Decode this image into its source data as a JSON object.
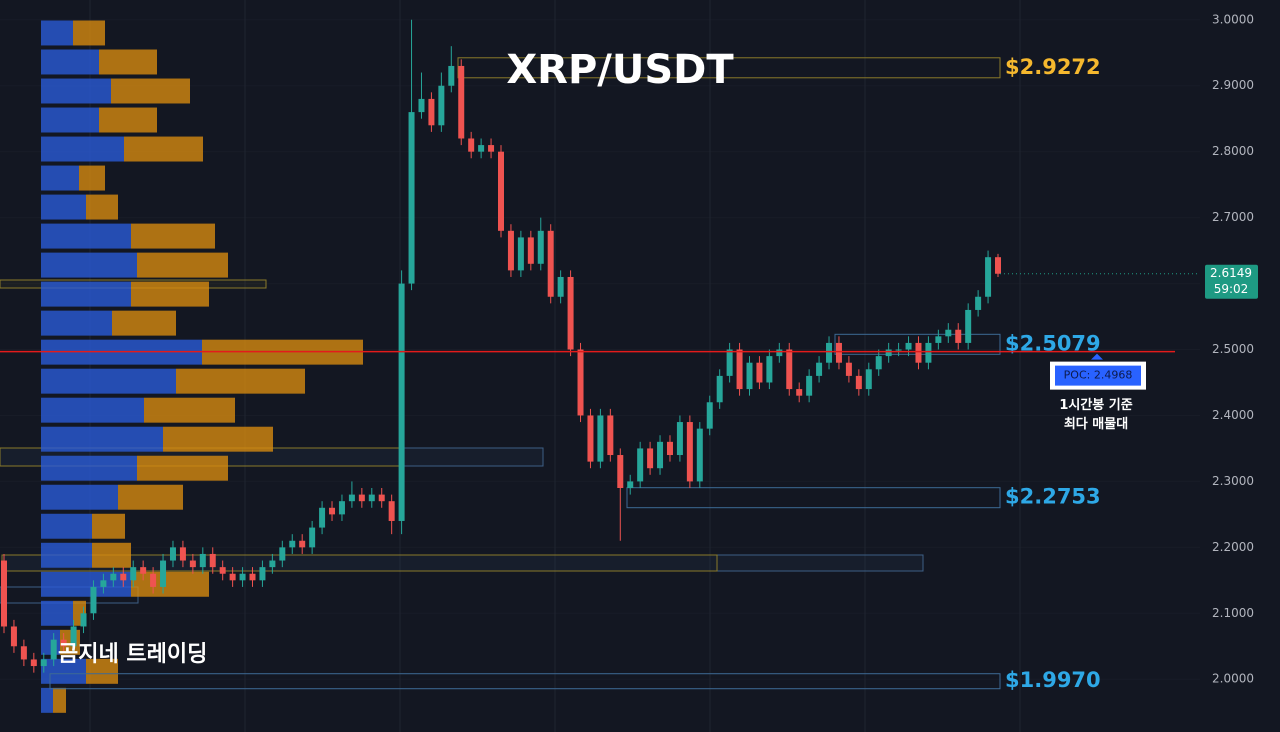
{
  "chart_data": {
    "type": "candlestick",
    "title": "XRP/USDT",
    "watermark": "곰지네 트레이딩",
    "ylim": [
      1.92,
      3.03
    ],
    "yticks": [
      {
        "value": 2.0,
        "label": "2.0000"
      },
      {
        "value": 2.1,
        "label": "2.1000"
      },
      {
        "value": 2.2,
        "label": "2.2000"
      },
      {
        "value": 2.3,
        "label": "2.3000"
      },
      {
        "value": 2.4,
        "label": "2.4000"
      },
      {
        "value": 2.5,
        "label": "2.5000"
      },
      {
        "value": 2.6,
        "label": "2.6000"
      },
      {
        "value": 2.7,
        "label": "2.7000"
      },
      {
        "value": 2.8,
        "label": "2.8000"
      },
      {
        "value": 2.9,
        "label": "2.9000"
      },
      {
        "value": 3.0,
        "label": "3.0000"
      }
    ],
    "grid": true,
    "up_color": "#26a69a",
    "down_color": "#ef5350",
    "open": [
      2.18,
      2.08,
      2.05,
      2.03,
      2.02,
      2.03,
      2.06,
      2.05,
      2.08,
      2.1,
      2.14,
      2.15,
      2.16,
      2.15,
      2.17,
      2.16,
      2.14,
      2.18,
      2.2,
      2.18,
      2.17,
      2.19,
      2.17,
      2.16,
      2.15,
      2.16,
      2.15,
      2.17,
      2.18,
      2.2,
      2.21,
      2.2,
      2.23,
      2.26,
      2.25,
      2.27,
      2.28,
      2.27,
      2.28,
      2.27,
      2.24,
      2.6,
      2.86,
      2.88,
      2.84,
      2.9,
      2.93,
      2.82,
      2.8,
      2.81,
      2.8,
      2.68,
      2.62,
      2.67,
      2.63,
      2.68,
      2.58,
      2.61,
      2.5,
      2.4,
      2.33,
      2.4,
      2.34,
      2.29,
      2.3,
      2.35,
      2.32,
      2.36,
      2.34,
      2.39,
      2.3,
      2.38,
      2.42,
      2.46,
      2.5,
      2.44,
      2.48,
      2.45,
      2.49,
      2.5,
      2.44,
      2.43,
      2.46,
      2.48,
      2.51,
      2.48,
      2.46,
      2.44,
      2.47,
      2.49,
      2.5,
      2.5,
      2.51,
      2.48,
      2.51,
      2.52,
      2.53,
      2.51,
      2.56,
      2.58,
      2.64
    ],
    "high": [
      2.19,
      2.09,
      2.06,
      2.04,
      2.04,
      2.07,
      2.07,
      2.09,
      2.11,
      2.15,
      2.16,
      2.17,
      2.17,
      2.18,
      2.18,
      2.17,
      2.19,
      2.21,
      2.21,
      2.19,
      2.2,
      2.2,
      2.18,
      2.17,
      2.17,
      2.17,
      2.18,
      2.19,
      2.21,
      2.22,
      2.22,
      2.24,
      2.27,
      2.27,
      2.28,
      2.3,
      2.29,
      2.29,
      2.29,
      2.28,
      2.62,
      3.0,
      2.92,
      2.89,
      2.92,
      2.96,
      2.94,
      2.83,
      2.82,
      2.82,
      2.81,
      2.69,
      2.68,
      2.68,
      2.7,
      2.69,
      2.62,
      2.62,
      2.51,
      2.41,
      2.41,
      2.41,
      2.35,
      2.31,
      2.36,
      2.36,
      2.37,
      2.37,
      2.4,
      2.4,
      2.39,
      2.43,
      2.47,
      2.51,
      2.51,
      2.49,
      2.49,
      2.5,
      2.51,
      2.51,
      2.45,
      2.47,
      2.49,
      2.52,
      2.52,
      2.49,
      2.47,
      2.48,
      2.5,
      2.51,
      2.51,
      2.52,
      2.52,
      2.52,
      2.53,
      2.54,
      2.54,
      2.57,
      2.59,
      2.65,
      2.645
    ],
    "low": [
      2.07,
      2.04,
      2.02,
      2.01,
      2.01,
      2.02,
      2.04,
      2.04,
      2.07,
      2.09,
      2.13,
      2.14,
      2.14,
      2.14,
      2.15,
      2.13,
      2.13,
      2.17,
      2.17,
      2.16,
      2.16,
      2.16,
      2.15,
      2.14,
      2.14,
      2.14,
      2.14,
      2.16,
      2.17,
      2.19,
      2.19,
      2.19,
      2.22,
      2.24,
      2.24,
      2.26,
      2.26,
      2.26,
      2.26,
      2.22,
      2.22,
      2.59,
      2.85,
      2.83,
      2.83,
      2.89,
      2.81,
      2.79,
      2.79,
      2.79,
      2.67,
      2.61,
      2.61,
      2.62,
      2.62,
      2.57,
      2.57,
      2.49,
      2.39,
      2.32,
      2.32,
      2.33,
      2.21,
      2.28,
      2.29,
      2.31,
      2.31,
      2.33,
      2.33,
      2.29,
      2.29,
      2.37,
      2.41,
      2.45,
      2.43,
      2.43,
      2.44,
      2.44,
      2.48,
      2.43,
      2.42,
      2.42,
      2.45,
      2.47,
      2.47,
      2.45,
      2.43,
      2.43,
      2.46,
      2.48,
      2.49,
      2.49,
      2.47,
      2.47,
      2.5,
      2.51,
      2.5,
      2.5,
      2.55,
      2.57,
      2.61
    ],
    "close": [
      2.08,
      2.05,
      2.03,
      2.02,
      2.03,
      2.06,
      2.05,
      2.08,
      2.1,
      2.14,
      2.15,
      2.16,
      2.15,
      2.17,
      2.16,
      2.14,
      2.18,
      2.2,
      2.18,
      2.17,
      2.19,
      2.17,
      2.16,
      2.15,
      2.16,
      2.15,
      2.17,
      2.18,
      2.2,
      2.21,
      2.2,
      2.23,
      2.26,
      2.25,
      2.27,
      2.28,
      2.27,
      2.28,
      2.27,
      2.24,
      2.6,
      2.86,
      2.88,
      2.84,
      2.9,
      2.93,
      2.82,
      2.8,
      2.81,
      2.8,
      2.68,
      2.62,
      2.67,
      2.63,
      2.68,
      2.58,
      2.61,
      2.5,
      2.4,
      2.33,
      2.4,
      2.34,
      2.29,
      2.3,
      2.35,
      2.32,
      2.36,
      2.34,
      2.39,
      2.3,
      2.38,
      2.42,
      2.46,
      2.5,
      2.44,
      2.48,
      2.45,
      2.49,
      2.5,
      2.44,
      2.43,
      2.46,
      2.48,
      2.51,
      2.48,
      2.46,
      2.44,
      2.47,
      2.49,
      2.5,
      2.5,
      2.51,
      2.48,
      2.51,
      2.52,
      2.53,
      2.51,
      2.56,
      2.58,
      2.64,
      2.6149
    ],
    "profile": {
      "prices": [
        2.98,
        2.936,
        2.892,
        2.848,
        2.804,
        2.76,
        2.716,
        2.672,
        2.628,
        2.584,
        2.54,
        2.496,
        2.452,
        2.408,
        2.364,
        2.32,
        2.276,
        2.232,
        2.188,
        2.144,
        2.1,
        2.056,
        2.012,
        1.968
      ],
      "series": [
        {
          "color": "#2a5bd7",
          "values": [
            32,
            58,
            70,
            58,
            83,
            38,
            45,
            90,
            96,
            90,
            71,
            161,
            135,
            103,
            122,
            96,
            77,
            51,
            51,
            90,
            32,
            19,
            45,
            12
          ]
        },
        {
          "color": "#d68910",
          "values": [
            32,
            58,
            79,
            58,
            79,
            26,
            32,
            84,
            91,
            78,
            64,
            161,
            129,
            91,
            110,
            91,
            65,
            33,
            39,
            78,
            13,
            20,
            32,
            13
          ]
        }
      ]
    },
    "levels": [
      {
        "value": 2.9272,
        "label": "$2.9272",
        "color": "#f5b82e"
      },
      {
        "value": 2.5079,
        "label": "$2.5079",
        "color": "#2ea8e6"
      },
      {
        "value": 2.2753,
        "label": "$2.2753",
        "color": "#2ea8e6"
      },
      {
        "value": 1.997,
        "label": "$1.9970",
        "color": "#2ea8e6"
      }
    ],
    "poc": {
      "value": 2.4968,
      "label": "POC: 2.4968",
      "note": [
        "1시간봉 기준",
        "최다 매물대"
      ],
      "color": "#e31b1b"
    },
    "price_tag": {
      "value": 2.6149,
      "countdown": "59:02",
      "color": "#1e9a83"
    }
  }
}
